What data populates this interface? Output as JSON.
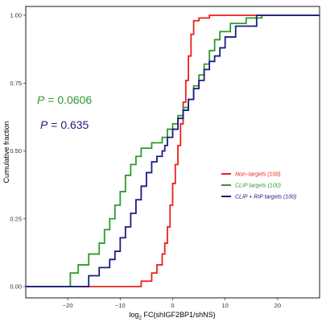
{
  "chart_data": {
    "type": "line",
    "step": true,
    "xlabel_parts": {
      "log": "log",
      "base": "2",
      "rest": " FC(shIGF2BP1/shNS)"
    },
    "ylabel": "Cumulative fraction",
    "xlim": [
      -28,
      28
    ],
    "ylim": [
      0,
      1
    ],
    "xticks": [
      -20,
      -10,
      0,
      10,
      20
    ],
    "xtick_labels": [
      "−20",
      "−10",
      "0",
      "10",
      "20"
    ],
    "yticks": [
      0,
      0.25,
      0.5,
      0.75,
      1
    ],
    "ytick_labels": [
      "0.00",
      "0.25",
      "0.50",
      "0.75",
      "1.00"
    ],
    "grid": false,
    "legend_position": "center-right",
    "annotations": [
      {
        "label": "P",
        "eq": " = ",
        "value": "0.0606",
        "color": "#2e9a2e"
      },
      {
        "label": "P",
        "eq": " = ",
        "value": "0.635",
        "color": "#1c1c80"
      }
    ],
    "series": [
      {
        "name": "Non−targets (100)",
        "color": "#e8211f",
        "points": [
          [
            -28,
            0
          ],
          [
            -7.5,
            0
          ],
          [
            -6,
            0.02
          ],
          [
            -4,
            0.05
          ],
          [
            -3,
            0.08
          ],
          [
            -2,
            0.12
          ],
          [
            -1.5,
            0.16
          ],
          [
            -1,
            0.22
          ],
          [
            -0.5,
            0.3
          ],
          [
            0,
            0.38
          ],
          [
            0.5,
            0.45
          ],
          [
            1,
            0.52
          ],
          [
            1.5,
            0.6
          ],
          [
            2,
            0.68
          ],
          [
            2.5,
            0.76
          ],
          [
            3,
            0.85
          ],
          [
            3.5,
            0.93
          ],
          [
            4,
            0.98
          ],
          [
            5,
            0.99
          ],
          [
            7,
            1
          ],
          [
            28,
            1
          ]
        ]
      },
      {
        "name": "CLIP targets (100)",
        "color": "#2e9a2e",
        "points": [
          [
            -28,
            0
          ],
          [
            -20.5,
            0
          ],
          [
            -19.5,
            0.05
          ],
          [
            -18,
            0.08
          ],
          [
            -16,
            0.12
          ],
          [
            -14,
            0.16
          ],
          [
            -13,
            0.21
          ],
          [
            -12,
            0.25
          ],
          [
            -11,
            0.3
          ],
          [
            -10,
            0.35
          ],
          [
            -9,
            0.41
          ],
          [
            -8,
            0.45
          ],
          [
            -7,
            0.48
          ],
          [
            -6,
            0.51
          ],
          [
            -4,
            0.53
          ],
          [
            -2,
            0.55
          ],
          [
            -1,
            0.58
          ],
          [
            0,
            0.6
          ],
          [
            1,
            0.63
          ],
          [
            2,
            0.66
          ],
          [
            3,
            0.69
          ],
          [
            4,
            0.74
          ],
          [
            5,
            0.78
          ],
          [
            6,
            0.82
          ],
          [
            7,
            0.87
          ],
          [
            8,
            0.91
          ],
          [
            9,
            0.94
          ],
          [
            11,
            0.97
          ],
          [
            14,
            0.99
          ],
          [
            17,
            1
          ],
          [
            28,
            1
          ]
        ]
      },
      {
        "name": "CLIP + RIP targets (100)",
        "color": "#1c1c80",
        "points": [
          [
            -28,
            0
          ],
          [
            -17,
            0
          ],
          [
            -16,
            0.04
          ],
          [
            -14,
            0.07
          ],
          [
            -12,
            0.1
          ],
          [
            -11,
            0.13
          ],
          [
            -10,
            0.18
          ],
          [
            -9,
            0.22
          ],
          [
            -8,
            0.27
          ],
          [
            -7,
            0.32
          ],
          [
            -6,
            0.37
          ],
          [
            -5,
            0.42
          ],
          [
            -4,
            0.46
          ],
          [
            -3,
            0.48
          ],
          [
            -2,
            0.5
          ],
          [
            -1.5,
            0.52
          ],
          [
            -1,
            0.55
          ],
          [
            0,
            0.58
          ],
          [
            1,
            0.62
          ],
          [
            2,
            0.65
          ],
          [
            3,
            0.69
          ],
          [
            4,
            0.73
          ],
          [
            5,
            0.76
          ],
          [
            6,
            0.8
          ],
          [
            7,
            0.83
          ],
          [
            8,
            0.85
          ],
          [
            9,
            0.88
          ],
          [
            10,
            0.92
          ],
          [
            12,
            0.96
          ],
          [
            16,
            1
          ],
          [
            28,
            1
          ]
        ]
      }
    ]
  }
}
